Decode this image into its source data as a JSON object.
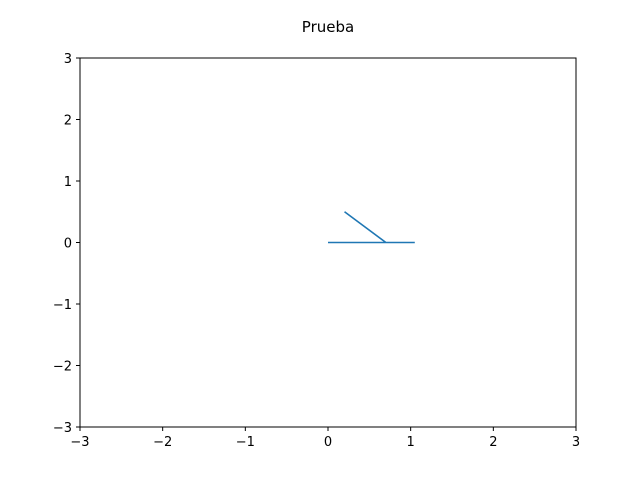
{
  "chart_data": {
    "type": "line",
    "title": "Prueba",
    "xlabel": "",
    "ylabel": "",
    "xlim": [
      -3,
      3
    ],
    "ylim": [
      -3,
      3
    ],
    "xticks": [
      -3,
      -2,
      -1,
      0,
      1,
      2,
      3
    ],
    "yticks": [
      -3,
      -2,
      -1,
      0,
      1,
      2,
      3
    ],
    "xtick_labels": [
      "−3",
      "−2",
      "−1",
      "0",
      "1",
      "2",
      "3"
    ],
    "ytick_labels": [
      "−3",
      "−2",
      "−1",
      "0",
      "1",
      "2",
      "3"
    ],
    "grid": false,
    "series": [
      {
        "color": "#1f77b4",
        "x": [
          0.0,
          1.05,
          0.7,
          0.2
        ],
        "y": [
          0.0,
          0.0,
          0.0,
          0.5
        ]
      }
    ]
  }
}
